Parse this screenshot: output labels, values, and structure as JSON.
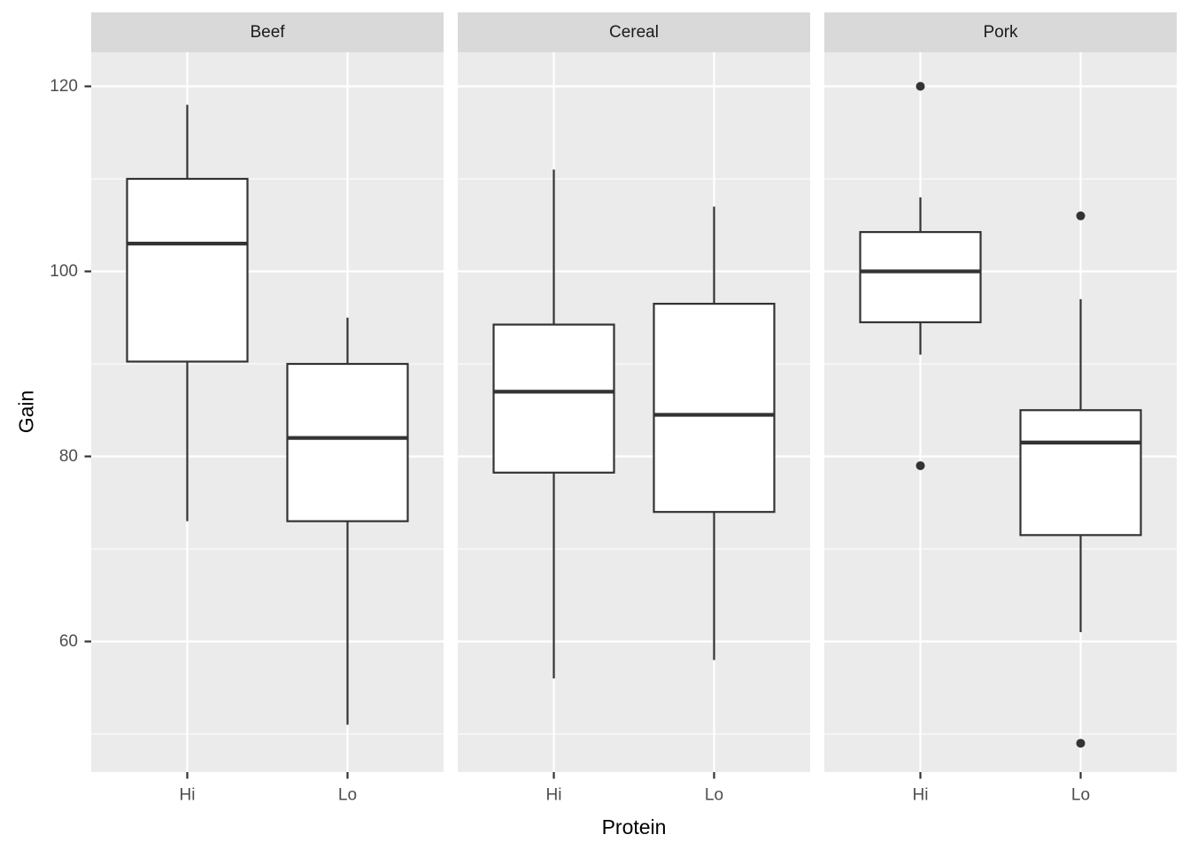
{
  "figure": {
    "x_axis_title": "Protein",
    "y_axis_title": "Gain"
  },
  "chart_data": {
    "type": "boxplot",
    "title": "",
    "xlabel": "Protein",
    "ylabel": "Gain",
    "legend": "none",
    "grid": "on",
    "theme": "ggplot2-grey",
    "facet_labels": [
      "Beef",
      "Cereal",
      "Pork"
    ],
    "categories": [
      "Hi",
      "Lo"
    ],
    "y_axis": {
      "tick_values": [
        60,
        80,
        100,
        120
      ],
      "tick_labels": [
        "60",
        "80",
        "100",
        "120"
      ],
      "minor_gridlines": [
        50,
        70,
        90,
        110
      ],
      "range": [
        45.9,
        123.7
      ]
    },
    "facets": [
      {
        "label": "Beef",
        "boxes": [
          {
            "category": "Hi",
            "whisker_low": 73,
            "q1": 90.25,
            "median": 103,
            "q3": 110,
            "whisker_high": 118,
            "outliers": []
          },
          {
            "category": "Lo",
            "whisker_low": 51,
            "q1": 73,
            "median": 82,
            "q3": 90,
            "whisker_high": 95,
            "outliers": []
          }
        ]
      },
      {
        "label": "Cereal",
        "boxes": [
          {
            "category": "Hi",
            "whisker_low": 56,
            "q1": 78.25,
            "median": 87,
            "q3": 94.25,
            "whisker_high": 111,
            "outliers": []
          },
          {
            "category": "Lo",
            "whisker_low": 58,
            "q1": 74,
            "median": 84.5,
            "q3": 96.5,
            "whisker_high": 107,
            "outliers": []
          }
        ]
      },
      {
        "label": "Pork",
        "boxes": [
          {
            "category": "Hi",
            "whisker_low": 91,
            "q1": 94.5,
            "median": 100,
            "q3": 104.25,
            "whisker_high": 108,
            "outliers": [
              79,
              120
            ]
          },
          {
            "category": "Lo",
            "whisker_low": 61,
            "q1": 71.5,
            "median": 81.5,
            "q3": 85,
            "whisker_high": 97,
            "outliers": [
              49,
              106
            ]
          }
        ]
      }
    ]
  },
  "colors": {
    "background": "#FFFFFF",
    "panel_background": "#EBEBEB",
    "strip_background": "#D9D9D9",
    "gridline": "#FFFFFF",
    "box_stroke": "#333333",
    "box_fill": "#FFFFFF",
    "outlier": "#333333",
    "tick_mark": "#333333",
    "tick_label": "#4D4D4D",
    "strip_text": "#1A1A1A",
    "axis_title": "#000000"
  }
}
